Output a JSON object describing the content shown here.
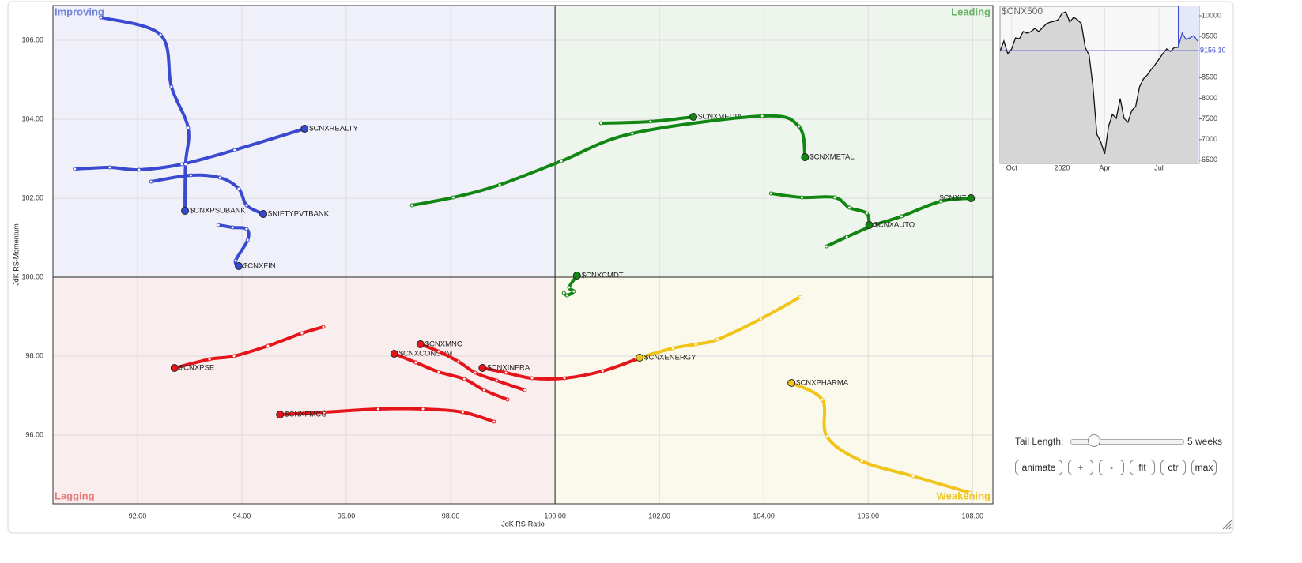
{
  "chart_data": [
    {
      "type": "rrg",
      "x_label": "JdK RS-Ratio",
      "y_label": "JdK RS-Momentum",
      "xlim": [
        90.38,
        108.39
      ],
      "ylim": [
        94.26,
        106.88
      ],
      "xticks": [
        {
          "value": 92,
          "label": "92.00"
        },
        {
          "value": 94,
          "label": "94.00"
        },
        {
          "value": 96,
          "label": "96.00"
        },
        {
          "value": 98,
          "label": "98.00"
        },
        {
          "value": 100,
          "label": "100.00"
        },
        {
          "value": 102,
          "label": "102.00"
        },
        {
          "value": 104,
          "label": "104.00"
        },
        {
          "value": 106,
          "label": "106.00"
        },
        {
          "value": 108,
          "label": "108.00"
        }
      ],
      "yticks": [
        {
          "value": 96,
          "label": "96.00"
        },
        {
          "value": 98,
          "label": "98.00"
        },
        {
          "value": 100,
          "label": "100.00"
        },
        {
          "value": 102,
          "label": "102.00"
        },
        {
          "value": 104,
          "label": "104.00"
        },
        {
          "value": 106,
          "label": "106.00"
        }
      ],
      "grid": true,
      "center": {
        "x": 100,
        "y": 100
      },
      "quadrants": [
        {
          "name": "Improving",
          "corner": "top-left",
          "color": "#eff0fa",
          "text_color": "#7083d8"
        },
        {
          "name": "Leading",
          "corner": "top-right",
          "color": "#eef5ec",
          "text_color": "#6ab36a"
        },
        {
          "name": "Lagging",
          "corner": "bottom-left",
          "color": "#f9eded",
          "text_color": "#e77a7a"
        },
        {
          "name": "Weakening",
          "corner": "bottom-right",
          "color": "#fbf9ec",
          "text_color": "#eec52a"
        }
      ],
      "series": [
        {
          "name": "$CNXREALTY",
          "color": "#3a4ad0",
          "x": [
            90.8,
            91.47,
            92.03,
            92.85,
            93.86,
            95.2
          ],
          "y": [
            102.74,
            102.78,
            102.72,
            102.86,
            103.22,
            103.76
          ]
        },
        {
          "name": "$CNXPSUBANK",
          "color": "#3a4ad0",
          "x": [
            91.3,
            92.44,
            92.65,
            92.97,
            92.92,
            92.91
          ],
          "y": [
            106.58,
            106.14,
            104.82,
            103.78,
            102.86,
            101.68
          ]
        },
        {
          "name": "$NIFTYPVTBANK",
          "color": "#3a4ad0",
          "x": [
            92.26,
            93.02,
            93.58,
            93.94,
            94.09,
            94.41
          ],
          "y": [
            102.42,
            102.58,
            102.52,
            102.24,
            101.82,
            101.6
          ]
        },
        {
          "name": "$CNXFIN",
          "color": "#3a4ad0",
          "x": [
            93.55,
            93.82,
            94.09,
            94.11,
            93.88,
            93.94
          ],
          "y": [
            101.32,
            101.26,
            101.22,
            100.94,
            100.42,
            100.28
          ]
        },
        {
          "name": "$CNXMEDIA",
          "color": "#128612",
          "x": [
            100.88,
            101.83,
            102.65
          ],
          "y": [
            103.9,
            103.94,
            104.06
          ]
        },
        {
          "name": "$CNXMETAL",
          "color": "#128612",
          "x": [
            97.26,
            98.05,
            98.94,
            100.12,
            101.48,
            103.97,
            104.67,
            104.79
          ],
          "y": [
            101.82,
            102.02,
            102.34,
            102.94,
            103.64,
            104.08,
            103.82,
            103.04
          ]
        },
        {
          "name": "$CNXIT",
          "color": "#128612",
          "x": [
            105.2,
            105.59,
            106.12,
            106.64,
            107.39,
            107.97
          ],
          "y": [
            100.78,
            101.02,
            101.32,
            101.54,
            101.92,
            102.0
          ]
        },
        {
          "name": "$CNXAUTO",
          "color": "#128612",
          "x": [
            104.14,
            104.73,
            105.36,
            105.64,
            105.97,
            106.02
          ],
          "y": [
            102.12,
            102.02,
            102.02,
            101.76,
            101.62,
            101.32
          ]
        },
        {
          "name": "$CNXCMDT",
          "color": "#128612",
          "x": [
            100.17,
            100.23,
            100.36,
            100.27,
            100.42
          ],
          "y": [
            99.6,
            99.54,
            99.64,
            99.74,
            100.04
          ]
        },
        {
          "name": "$CNXPSE",
          "color": "#e5141a",
          "x": [
            95.56,
            95.15,
            94.5,
            93.85,
            93.38,
            92.71
          ],
          "y": [
            98.74,
            98.58,
            98.26,
            98.0,
            97.92,
            97.7
          ]
        },
        {
          "name": "$CNXFMCG",
          "color": "#e5141a",
          "x": [
            98.83,
            98.23,
            97.47,
            96.61,
            95.58,
            94.73
          ],
          "y": [
            96.34,
            96.58,
            96.66,
            96.66,
            96.58,
            96.52
          ]
        },
        {
          "name": "$CNXCONSUM",
          "color": "#e5141a",
          "x": [
            99.09,
            98.64,
            98.26,
            97.77,
            97.33,
            96.92
          ],
          "y": [
            96.9,
            97.14,
            97.42,
            97.6,
            97.84,
            98.06
          ]
        },
        {
          "name": "$CNXMNC",
          "color": "#e5141a",
          "x": [
            99.42,
            98.88,
            98.47,
            98.15,
            97.77,
            97.42
          ],
          "y": [
            97.14,
            97.38,
            97.58,
            97.86,
            98.12,
            98.3
          ]
        },
        {
          "name": "$CNXINFRA",
          "color": "#e5141a",
          "x": [
            101.56,
            100.91,
            100.18,
            99.56,
            99.06,
            98.61
          ],
          "y": [
            97.92,
            97.62,
            97.44,
            97.44,
            97.58,
            97.7
          ]
        },
        {
          "name": "$CNXENERGY",
          "color": "#f0c419",
          "x": [
            104.7,
            103.94,
            103.11,
            102.7,
            102.26,
            101.62
          ],
          "y": [
            99.5,
            98.94,
            98.42,
            98.3,
            98.2,
            97.96
          ]
        },
        {
          "name": "$CNXPHARMA",
          "color": "#f0c419",
          "x": [
            107.95,
            106.86,
            105.88,
            105.21,
            105.12,
            104.53
          ],
          "y": [
            94.54,
            94.96,
            95.34,
            95.96,
            96.9,
            97.32
          ]
        }
      ]
    },
    {
      "type": "line",
      "title": "$CNX500",
      "color": "#111111",
      "highlight_color": "#3a4ad0",
      "categories": [
        null,
        null,
        null,
        "Oct",
        null,
        null,
        null,
        null,
        null,
        null,
        null,
        null,
        null,
        null,
        null,
        null,
        "2020",
        null,
        null,
        null,
        null,
        null,
        null,
        null,
        null,
        null,
        null,
        "Apr",
        null,
        null,
        null,
        null,
        null,
        null,
        null,
        null,
        null,
        null,
        null,
        null,
        null,
        "Jul",
        null,
        null,
        null,
        null,
        null,
        null,
        null,
        null,
        null,
        null
      ],
      "values": [
        9139,
        9388,
        9082,
        9197,
        9464,
        9445,
        9617,
        9579,
        9617,
        9694,
        9617,
        9713,
        9809,
        9847,
        9866,
        9904,
        10057,
        10096,
        9847,
        9962,
        9904,
        9809,
        9235,
        9044,
        8278,
        7130,
        6939,
        6652,
        7322,
        7609,
        7513,
        7991,
        7513,
        7418,
        7704,
        7800,
        8278,
        8470,
        8565,
        8699,
        8814,
        8948,
        9082,
        9197,
        9139,
        9235,
        9235,
        9579,
        9426,
        9464,
        9522,
        9388
      ],
      "ylim": [
        6420,
        10230
      ],
      "yticks": [
        6500,
        7000,
        7500,
        8000,
        8500,
        9500,
        10000
      ],
      "reference": {
        "value": 9156.1,
        "label": "9156.10"
      }
    }
  ],
  "controls": {
    "tail_label": "Tail Length:",
    "tail_length": {
      "value": 5,
      "label": "5 weeks"
    },
    "tail_max": 10,
    "buttons": [
      "animate",
      "+",
      "-",
      "fit",
      "ctr",
      "max"
    ]
  }
}
